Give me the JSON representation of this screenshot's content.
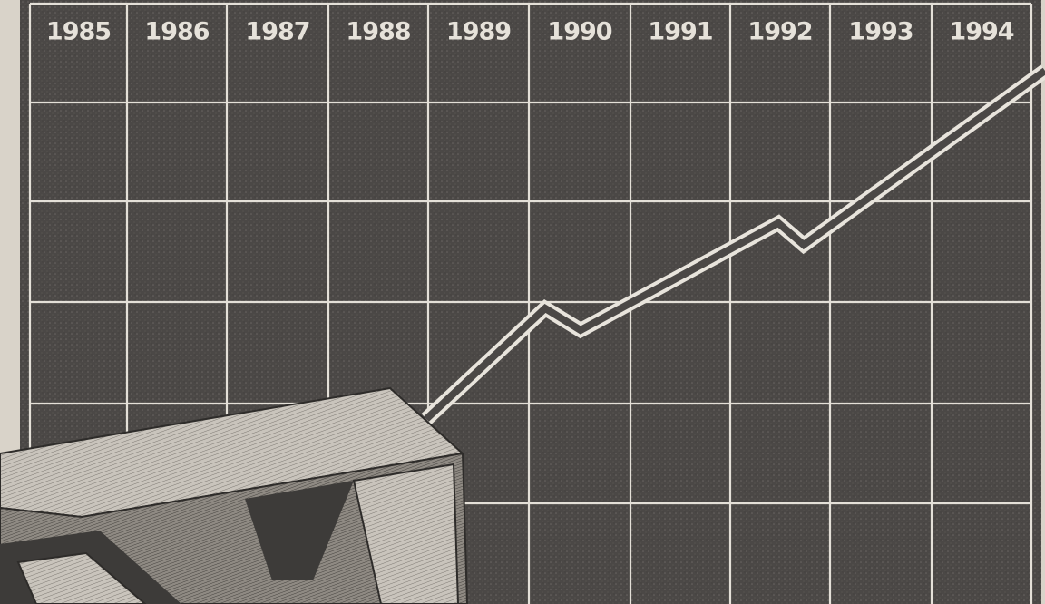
{
  "header": {
    "years": [
      "1985",
      "1986",
      "1987",
      "1988",
      "1989",
      "1990",
      "1991",
      "1992",
      "1993",
      "1994"
    ]
  }
}
